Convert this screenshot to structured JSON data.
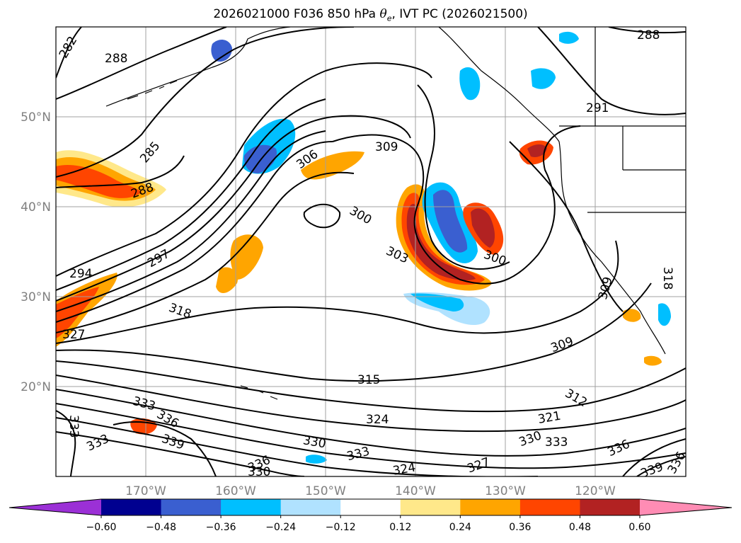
{
  "figure": {
    "title_prefix": "2026021000 F036 850 hPa ",
    "title_theta": "θ",
    "title_sub": "e",
    "title_suffix": ", IVT PC (2026021500)"
  },
  "axes": {
    "lat_labels": [
      "50°N",
      "40°N",
      "30°N",
      "20°N"
    ],
    "lon_labels": [
      "170°W",
      "160°W",
      "150°W",
      "140°W",
      "130°W",
      "120°W"
    ]
  },
  "contour_labels": [
    "282",
    "288",
    "288",
    "285",
    "288",
    "291",
    "306",
    "309",
    "300",
    "297",
    "294",
    "303",
    "300",
    "318",
    "309",
    "327",
    "318",
    "309",
    "315",
    "312",
    "333",
    "333",
    "336",
    "333",
    "339",
    "324",
    "321",
    "330",
    "330",
    "333",
    "336",
    "336",
    "330",
    "333",
    "324",
    "327",
    "339",
    "336"
  ],
  "colorbar": {
    "ticks": [
      "−0.60",
      "−0.48",
      "−0.36",
      "−0.24",
      "−0.12",
      "0.12",
      "0.24",
      "0.36",
      "0.48",
      "0.60"
    ],
    "under_color": "#9b30d6",
    "over_color": "#ff8cb4",
    "colors": [
      "#000090",
      "#3a5fd0",
      "#00bfff",
      "#b0e2ff",
      "#ffffff",
      "#ffe88a",
      "#ffa500",
      "#ff4500",
      "#b22222"
    ]
  },
  "map_data": {
    "field": "850 hPa theta-e contours with IVT PC shading",
    "theta_e_levels_shown": [
      282,
      285,
      288,
      291,
      294,
      297,
      300,
      303,
      306,
      309,
      312,
      315,
      318,
      321,
      324,
      327,
      330,
      333,
      336,
      339
    ]
  }
}
